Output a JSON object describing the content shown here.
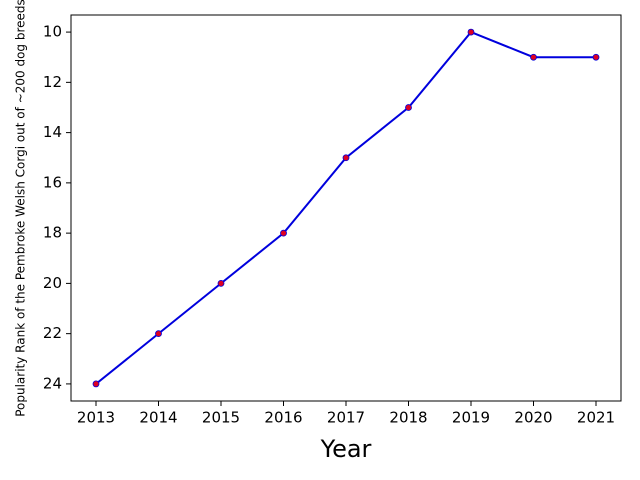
{
  "chart_data": {
    "type": "line",
    "x_label": "Year",
    "y_label": "Popularity Rank of the Pembroke Welsh Corgi out of ~200 dog breeds",
    "x": [
      2013,
      2014,
      2015,
      2016,
      2017,
      2018,
      2019,
      2020,
      2021
    ],
    "series": [
      {
        "name": "Popularity Rank",
        "color": "#0000dd",
        "marker_color": "#dd0022",
        "values": [
          24,
          22,
          20,
          18,
          15,
          13,
          10,
          11,
          11
        ]
      }
    ],
    "xlim": [
      2012.6,
      2021.4
    ],
    "xticks": [
      2013,
      2014,
      2015,
      2016,
      2017,
      2018,
      2019,
      2020,
      2021
    ],
    "ylim": [
      24.68,
      9.32
    ],
    "yticks": [
      10,
      12,
      14,
      16,
      18,
      20,
      22,
      24
    ],
    "y_inverted": true,
    "grid": false
  }
}
